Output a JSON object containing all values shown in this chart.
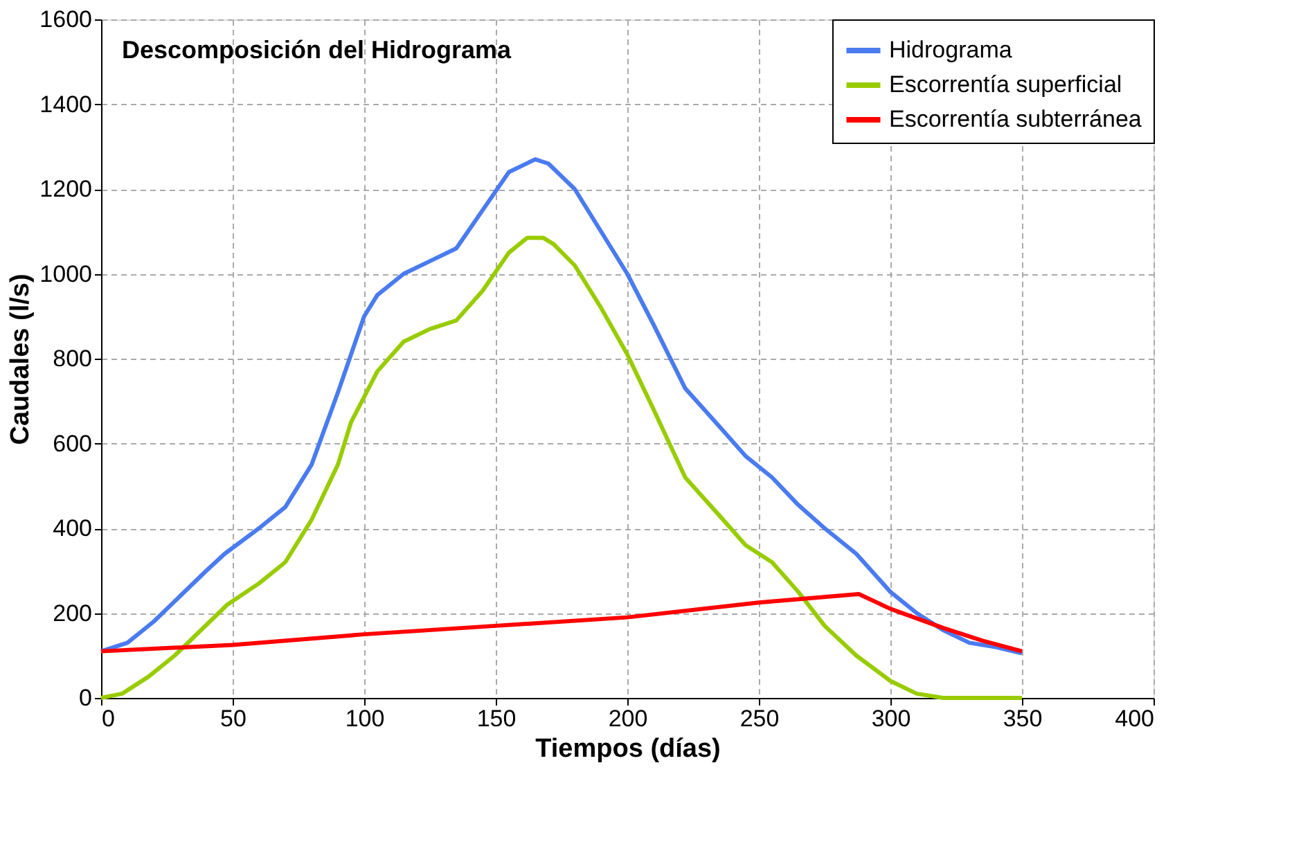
{
  "chart_data": {
    "type": "line",
    "title": "Descomposición del Hidrograma",
    "xlabel": "Tiempos (días)",
    "ylabel": "Caudales (l/s)",
    "xlim": [
      0,
      400
    ],
    "xticks": [
      0,
      50,
      100,
      150,
      200,
      250,
      300,
      350,
      400
    ],
    "ylim": [
      0,
      1600
    ],
    "yticks": [
      0,
      200,
      400,
      600,
      800,
      1000,
      1200,
      1400,
      1600
    ],
    "grid": true,
    "legend": "top right",
    "marker": "none",
    "line_style": "solid",
    "series": [
      {
        "name": "Hidrograma",
        "color": "#4a7bef",
        "x": [
          0,
          10,
          20,
          30,
          40,
          47,
          60,
          70,
          80,
          90,
          100,
          105,
          115,
          125,
          135,
          145,
          155,
          165,
          170,
          180,
          190,
          200,
          210,
          222,
          235,
          245,
          255,
          265,
          275,
          287,
          300,
          310,
          320,
          330,
          340,
          350
        ],
        "values": [
          110,
          130,
          180,
          240,
          300,
          340,
          400,
          450,
          550,
          720,
          900,
          950,
          1000,
          1030,
          1060,
          1150,
          1240,
          1270,
          1260,
          1200,
          1100,
          1000,
          880,
          730,
          640,
          570,
          520,
          455,
          400,
          340,
          250,
          200,
          160,
          130,
          120,
          105
        ]
      },
      {
        "name": "Escorrentía superficial",
        "color": "#99cc00",
        "x": [
          0,
          8,
          18,
          28,
          38,
          48,
          60,
          70,
          80,
          90,
          95,
          105,
          115,
          125,
          135,
          145,
          155,
          162,
          168,
          172,
          180,
          190,
          200,
          210,
          222,
          235,
          245,
          255,
          265,
          275,
          287,
          300,
          310,
          320,
          340,
          350
        ],
        "values": [
          0,
          10,
          50,
          100,
          160,
          220,
          270,
          320,
          420,
          550,
          650,
          770,
          840,
          870,
          890,
          960,
          1050,
          1085,
          1085,
          1070,
          1020,
          920,
          810,
          680,
          520,
          430,
          360,
          320,
          250,
          170,
          100,
          40,
          10,
          0,
          0,
          0
        ]
      },
      {
        "name": "Escorrentía subterránea",
        "color": "#ff0000",
        "x": [
          0,
          50,
          100,
          150,
          200,
          250,
          288,
          300,
          320,
          335,
          350
        ],
        "values": [
          110,
          125,
          150,
          170,
          190,
          225,
          245,
          210,
          165,
          135,
          110
        ]
      }
    ]
  }
}
